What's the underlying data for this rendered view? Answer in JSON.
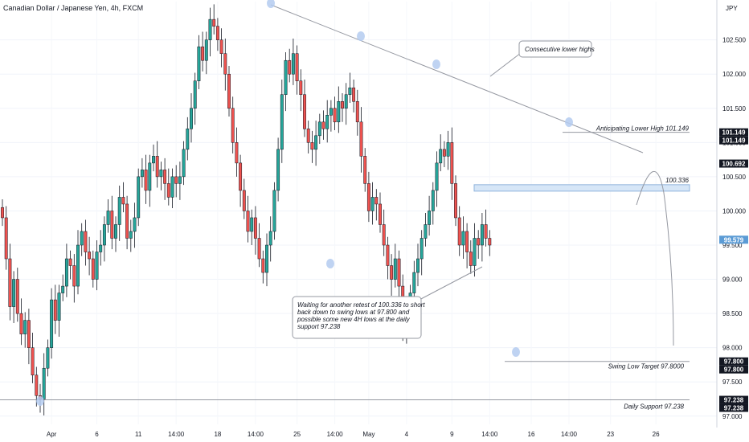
{
  "chart_data": {
    "type": "candlestick",
    "title": "Canadian Dollar / Japanese Yen, 4h, FXCM",
    "currency": "JPY",
    "ylim": [
      96.88,
      103.06
    ],
    "yticks": [
      97.0,
      97.5,
      98.0,
      98.5,
      99.0,
      99.5,
      100.0,
      100.5,
      101.0,
      101.5,
      102.0,
      102.5
    ],
    "ytick_labels": [
      "97.000",
      "97.500",
      "98.000",
      "98.500",
      "99.000",
      "99.500",
      "100.000",
      "100.500",
      "101.000",
      "101.500",
      "102.000",
      "102.500"
    ],
    "xticks": [
      {
        "label": "Apr",
        "i": 13
      },
      {
        "label": "6",
        "i": 25
      },
      {
        "label": "11",
        "i": 36
      },
      {
        "label": "14:00",
        "i": 46
      },
      {
        "label": "18",
        "i": 57
      },
      {
        "label": "14:00",
        "i": 67
      },
      {
        "label": "25",
        "i": 78
      },
      {
        "label": "14:00",
        "i": 88
      },
      {
        "label": "May",
        "i": 97
      },
      {
        "label": "4",
        "i": 107
      },
      {
        "label": "9",
        "i": 119
      },
      {
        "label": "14:00",
        "i": 129
      },
      {
        "label": "16",
        "i": 140
      },
      {
        "label": "14:00",
        "i": 150
      },
      {
        "label": "23",
        "i": 161
      },
      {
        "label": "26",
        "i": 173
      }
    ],
    "colors": {
      "up": "#26a69a",
      "down": "#ef5350",
      "wick": "#131722"
    },
    "closes": [
      99.9,
      99.3,
      98.6,
      99.0,
      98.5,
      98.2,
      98.4,
      98.0,
      97.6,
      97.3,
      97.25,
      97.7,
      98.0,
      98.7,
      98.4,
      98.8,
      98.9,
      99.3,
      99.2,
      98.9,
      99.5,
      99.7,
      99.4,
      99.3,
      99.0,
      99.4,
      99.5,
      99.8,
      100.0,
      99.6,
      99.8,
      100.2,
      100.1,
      99.6,
      99.7,
      99.9,
      100.5,
      100.6,
      100.3,
      100.7,
      100.8,
      100.5,
      100.6,
      100.4,
      100.2,
      100.5,
      100.4,
      100.5,
      100.9,
      101.2,
      101.5,
      101.9,
      102.4,
      102.2,
      102.5,
      102.8,
      102.7,
      102.5,
      102.3,
      102.0,
      101.5,
      101.0,
      100.7,
      100.3,
      100.0,
      99.7,
      99.9,
      99.6,
      99.3,
      99.1,
      99.5,
      99.7,
      100.3,
      100.9,
      101.7,
      102.2,
      102.0,
      102.3,
      101.9,
      101.7,
      101.2,
      101.0,
      100.9,
      101.1,
      101.3,
      101.2,
      101.4,
      101.5,
      101.3,
      101.6,
      101.5,
      101.7,
      101.8,
      101.6,
      101.3,
      100.8,
      100.4,
      100.0,
      100.2,
      100.1,
      99.8,
      99.5,
      99.2,
      99.0,
      99.3,
      98.9,
      98.3,
      98.5,
      98.8,
      99.1,
      99.3,
      99.6,
      99.8,
      100.0,
      100.3,
      100.7,
      100.9,
      100.8,
      101.0,
      100.4,
      99.9,
      99.5,
      99.7,
      99.4,
      99.2,
      99.6,
      99.5,
      99.8,
      99.6,
      99.5
    ],
    "timeline": "4h",
    "annotations": {
      "lower_highs_label": "Consecutive lower highs",
      "anticipating_label": "Anticipating Lower High 101.149",
      "resistance_label": "100.336",
      "swing_low_label": "Swing Low Target 97.8000",
      "daily_support_label": "Daily Support 97.238",
      "callout_lines": [
        "Waiting for another retest of 100.336 to short",
        "back down to swing lows at 97.800 and",
        "possible some new 4H lows at the daily",
        "support 97.238"
      ]
    },
    "levels": {
      "resistance": 100.336,
      "lower_high_target": 101.149,
      "swing_low": 97.8,
      "daily_support": 97.238,
      "current": 99.579,
      "last_high": 100.692
    },
    "badges": [
      {
        "label": "101.149",
        "value": 101.149,
        "color": "#131722"
      },
      {
        "label": "101.149",
        "value": 101.149,
        "color": "#131722",
        "offset": 1
      },
      {
        "label": "100.692",
        "value": 100.692,
        "color": "#131722"
      },
      {
        "label": "99.579",
        "value": 99.579,
        "color": "#5b9bd5"
      },
      {
        "label": "97.800",
        "value": 97.8,
        "color": "#131722"
      },
      {
        "label": "97.800",
        "value": 97.8,
        "color": "#131722",
        "offset": 1
      },
      {
        "label": "97.238",
        "value": 97.238,
        "color": "#131722"
      },
      {
        "label": "97.238",
        "value": 97.238,
        "color": "#131722",
        "offset": 1
      }
    ]
  }
}
